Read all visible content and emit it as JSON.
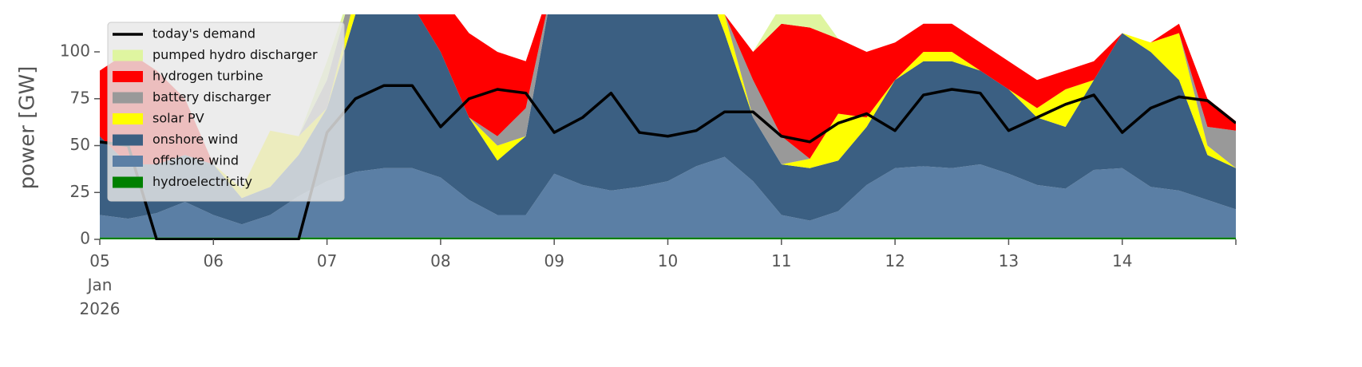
{
  "chart_data": {
    "type": "area",
    "ylabel": "power [GW]",
    "x": [
      5,
      5.25,
      5.5,
      5.75,
      6,
      6.25,
      6.5,
      6.75,
      7,
      7.25,
      7.5,
      7.75,
      8,
      8.25,
      8.5,
      8.75,
      9,
      9.25,
      9.5,
      9.75,
      10,
      10.25,
      10.5,
      10.75,
      11,
      11.25,
      11.5,
      11.75,
      12,
      12.25,
      12.5,
      12.75,
      13,
      13.25,
      13.5,
      13.75,
      14,
      14.25,
      14.5,
      14.75,
      15
    ],
    "xlim": [
      5,
      15
    ],
    "xticks": [
      {
        "value": 5,
        "label": "05\nJan\n2026"
      },
      {
        "value": 6,
        "label": "06"
      },
      {
        "value": 7,
        "label": "07"
      },
      {
        "value": 8,
        "label": "08"
      },
      {
        "value": 9,
        "label": "09"
      },
      10,
      11,
      12,
      13,
      14
    ],
    "ylim": [
      0,
      120
    ],
    "yticks": [
      0,
      25,
      50,
      75,
      100
    ],
    "series": [
      {
        "name": "hydroelectricity",
        "color": "#008000",
        "values": [
          1,
          1,
          1,
          1,
          1,
          1,
          1,
          1,
          1,
          1,
          1,
          1,
          1,
          1,
          1,
          1,
          1,
          1,
          1,
          1,
          1,
          1,
          1,
          1,
          1,
          1,
          1,
          1,
          1,
          1,
          1,
          1,
          1,
          1,
          1,
          1,
          1,
          1,
          1,
          1,
          1
        ]
      },
      {
        "name": "offshore wind",
        "color": "#5b7fa5",
        "values": [
          12,
          10,
          13,
          19,
          12,
          7,
          12,
          22,
          30,
          35,
          37,
          37,
          32,
          20,
          12,
          12,
          34,
          28,
          25,
          27,
          30,
          38,
          43,
          30,
          12,
          9,
          14,
          28,
          37,
          38,
          37,
          39,
          34,
          28,
          26,
          36,
          37,
          27,
          25,
          20,
          15
        ]
      },
      {
        "name": "onshore wind",
        "color": "#3b5f82",
        "values": [
          42,
          29,
          26,
          25,
          27,
          14,
          15,
          22,
          39,
          84,
          92,
          87,
          67,
          44,
          29,
          42,
          105,
          121,
          124,
          122,
          119,
          111,
          66,
          34,
          27,
          28,
          27,
          31,
          47,
          56,
          57,
          50,
          45,
          36,
          33,
          48,
          72,
          72,
          59,
          24,
          22
        ]
      },
      {
        "name": "solar PV",
        "color": "#ffff00",
        "values": [
          0,
          0,
          0,
          0,
          0,
          5,
          30,
          10,
          0,
          10,
          5,
          0,
          0,
          0,
          8,
          0,
          0,
          0,
          0,
          0,
          0,
          0,
          10,
          0,
          0,
          5,
          25,
          5,
          0,
          5,
          5,
          0,
          0,
          5,
          20,
          0,
          0,
          5,
          25,
          5,
          0
        ]
      },
      {
        "name": "battery discharger",
        "color": "#999999",
        "values": [
          0,
          0,
          0,
          0,
          0,
          0,
          0,
          0,
          15,
          10,
          0,
          0,
          0,
          0,
          5,
          15,
          0,
          0,
          0,
          0,
          0,
          0,
          0,
          20,
          15,
          0,
          0,
          0,
          0,
          0,
          0,
          0,
          0,
          0,
          0,
          0,
          0,
          0,
          0,
          10,
          20
        ]
      },
      {
        "name": "hydrogen turbine",
        "color": "#ff0000",
        "values": [
          35,
          60,
          50,
          30,
          0,
          0,
          0,
          0,
          0,
          0,
          0,
          0,
          30,
          45,
          45,
          25,
          0,
          0,
          0,
          0,
          0,
          0,
          0,
          15,
          60,
          70,
          40,
          35,
          20,
          15,
          15,
          15,
          15,
          15,
          10,
          10,
          0,
          0,
          5,
          15,
          5
        ]
      },
      {
        "name": "pumped hydro discharger",
        "color": "#dff5a0",
        "values": [
          0,
          0,
          0,
          0,
          0,
          0,
          0,
          0,
          10,
          0,
          0,
          0,
          0,
          0,
          0,
          0,
          0,
          0,
          0,
          0,
          0,
          0,
          0,
          0,
          10,
          15,
          0,
          0,
          0,
          0,
          0,
          0,
          0,
          0,
          0,
          0,
          0,
          0,
          0,
          0,
          0
        ]
      }
    ],
    "line_series": [
      {
        "name": "today's demand",
        "color": "#000000",
        "values": [
          52,
          50,
          0,
          0,
          0,
          0,
          0,
          0,
          57,
          75,
          82,
          82,
          60,
          75,
          80,
          78,
          57,
          65,
          78,
          57,
          55,
          58,
          68,
          68,
          55,
          52,
          62,
          67,
          58,
          77,
          80,
          78,
          58,
          65,
          72,
          77,
          57,
          70,
          76,
          74,
          62
        ]
      }
    ]
  }
}
